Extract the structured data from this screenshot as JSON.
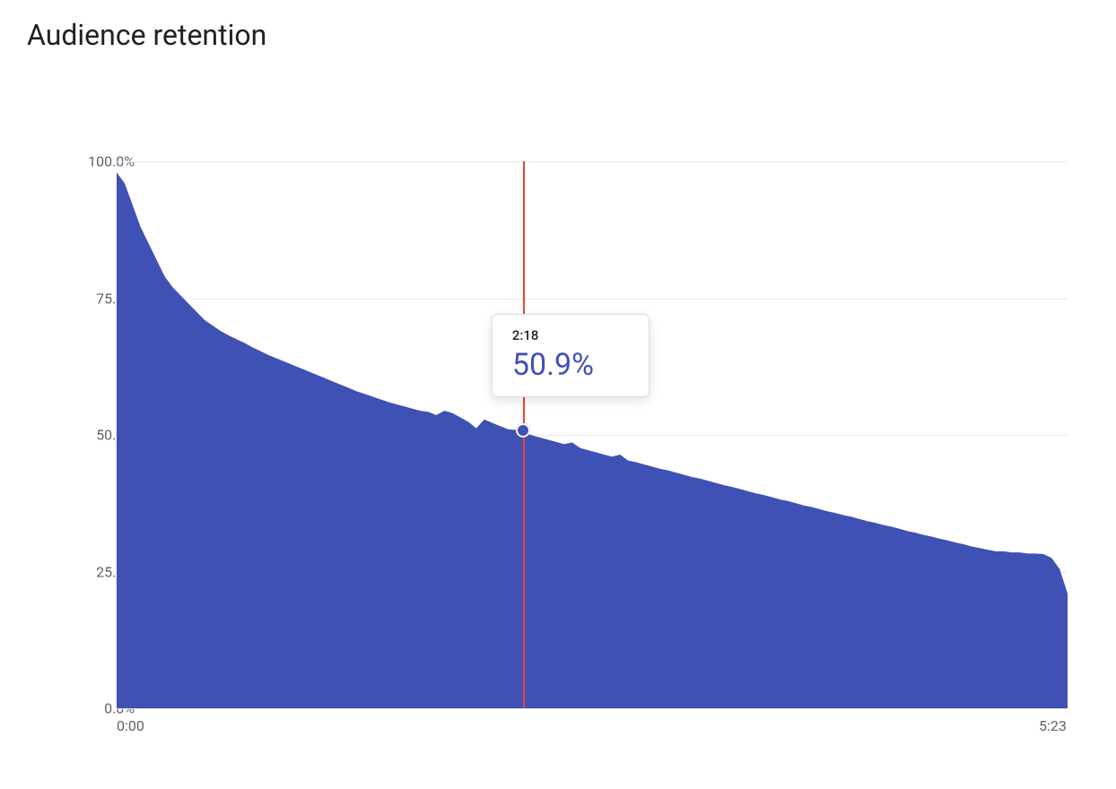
{
  "title": "Audience retention",
  "chart": {
    "type": "area",
    "background_color": "#ffffff",
    "grid_color": "#e8eaed",
    "axis_label_color": "#5f6368",
    "axis_label_fontsize": 16,
    "title_fontsize": 32,
    "title_color": "#202124",
    "area_fill_color": "#3f51b5",
    "area_fill_opacity": 1.0,
    "cursor_line_color": "#ea4335",
    "cursor_dot_fill": "#3f51b5",
    "cursor_dot_border": "#ffffff",
    "tooltip_bg": "#ffffff",
    "tooltip_border": "#dadce0",
    "tooltip_value_color": "#3f51b5",
    "tooltip_time_color": "#202124",
    "ylim": [
      0,
      100
    ],
    "ytick_step": 25,
    "ytick_labels": [
      "0.0%",
      "25.0%",
      "50.0%",
      "75.0%",
      "100.0%"
    ],
    "x_start_label": "0:00",
    "x_end_label": "5:23",
    "x_max_seconds": 323,
    "tooltip_time": "2:18",
    "tooltip_value": "50.9%",
    "cursor_x_seconds": 138,
    "cursor_y_percent": 50.9,
    "series_percent": [
      98,
      96,
      92,
      88,
      85,
      82,
      79,
      77,
      75.5,
      74,
      72.5,
      71,
      70,
      69,
      68.2,
      67.5,
      66.8,
      66,
      65.3,
      64.6,
      64,
      63.4,
      62.8,
      62.2,
      61.6,
      61,
      60.4,
      59.8,
      59.2,
      58.6,
      58,
      57.5,
      57,
      56.5,
      56,
      55.6,
      55.2,
      54.8,
      54.4,
      54.2,
      53.6,
      54.4,
      54.0,
      53.2,
      52.4,
      51.2,
      52.8,
      52.2,
      51.6,
      51.0,
      50.9,
      50.4,
      49.9,
      49.5,
      49.1,
      48.7,
      48.3,
      48.6,
      47.6,
      47.2,
      46.8,
      46.4,
      46.0,
      46.4,
      45.3,
      45.0,
      44.6,
      44.2,
      43.8,
      43.5,
      43.1,
      42.7,
      42.3,
      42.0,
      41.6,
      41.2,
      40.8,
      40.5,
      40.1,
      39.7,
      39.3,
      39.0,
      38.6,
      38.2,
      37.9,
      37.5,
      37.1,
      36.8,
      36.4,
      36.0,
      35.7,
      35.3,
      35.0,
      34.6,
      34.2,
      33.9,
      33.5,
      33.2,
      32.8,
      32.4,
      32.1,
      31.7,
      31.4,
      31.0,
      30.7,
      30.3,
      30.0,
      29.6,
      29.3,
      29.0,
      28.7,
      28.7,
      28.5,
      28.5,
      28.3,
      28.3,
      28.2,
      27.5,
      25.5,
      21.0
    ]
  }
}
